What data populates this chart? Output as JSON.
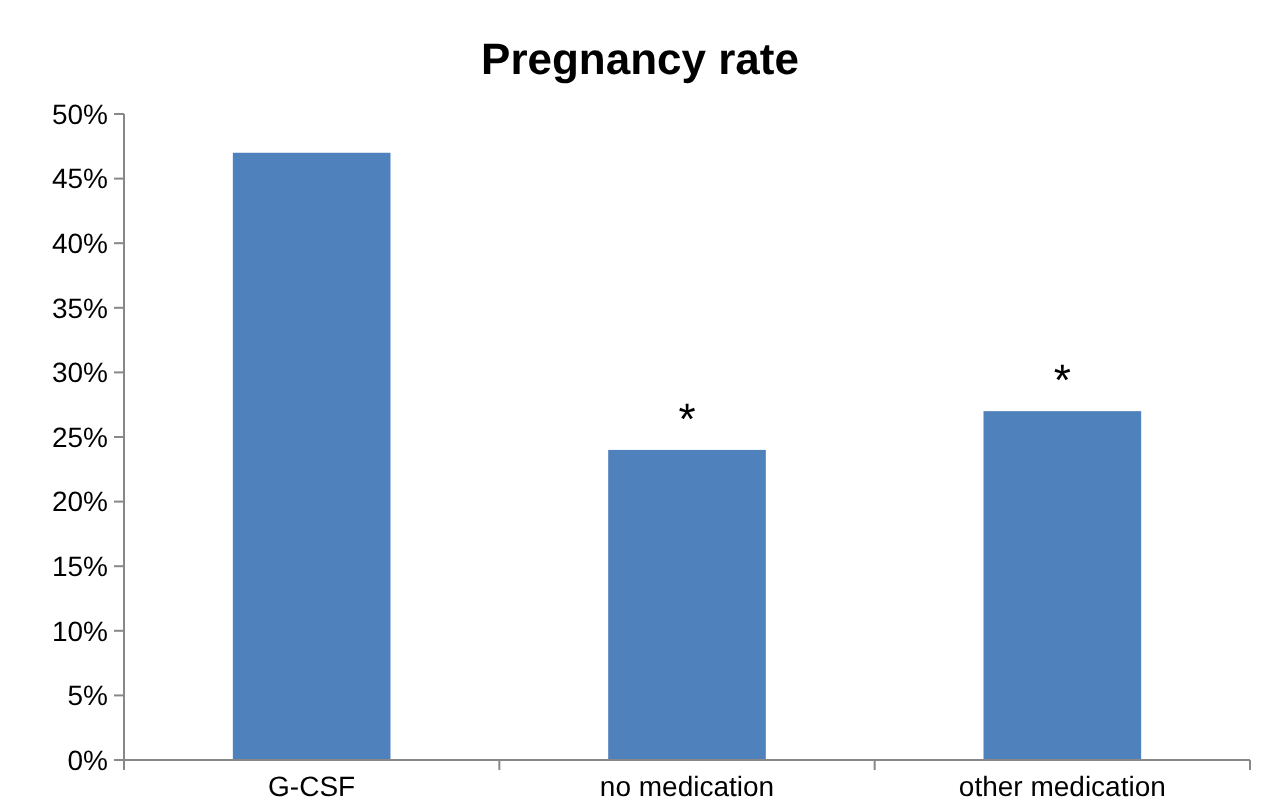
{
  "chart_data": {
    "type": "bar",
    "title": "Pregnancy rate",
    "categories": [
      "G-CSF",
      "no medication",
      "other medication"
    ],
    "values": [
      47,
      24,
      27
    ],
    "color": "#4f81bd",
    "ylim": [
      0,
      50
    ],
    "yticks": [
      {
        "value": 0,
        "label": "0%"
      },
      {
        "value": 5,
        "label": "5%"
      },
      {
        "value": 10,
        "label": "10%"
      },
      {
        "value": 15,
        "label": "15%"
      },
      {
        "value": 20,
        "label": "20%"
      },
      {
        "value": 25,
        "label": "25%"
      },
      {
        "value": 30,
        "label": "30%"
      },
      {
        "value": 35,
        "label": "35%"
      },
      {
        "value": 40,
        "label": "40%"
      },
      {
        "value": 45,
        "label": "45%"
      },
      {
        "value": 50,
        "label": "50%"
      }
    ],
    "annotations": [
      {
        "text": "*",
        "x": "no medication",
        "y": 24
      },
      {
        "text": "*",
        "x": "other medication",
        "y": 27
      }
    ],
    "grid": false
  }
}
